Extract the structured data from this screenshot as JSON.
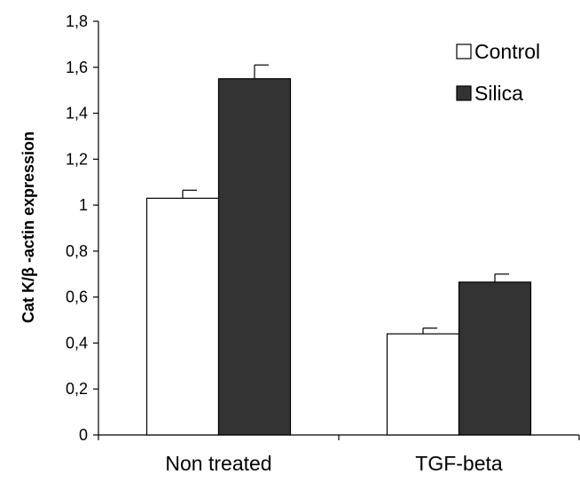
{
  "chart_data": {
    "type": "bar",
    "categories": [
      "Non treated",
      "TGF-beta"
    ],
    "series": [
      {
        "name": "Control",
        "values": [
          1.03,
          0.44
        ],
        "errors": [
          0.035,
          0.025
        ],
        "color": "#ffffff"
      },
      {
        "name": "Silica",
        "values": [
          1.55,
          0.665
        ],
        "errors": [
          0.06,
          0.035
        ],
        "color": "#333333"
      }
    ],
    "ylabel": "Cat K/β -actin expression",
    "xlabel": "",
    "ylim": [
      0,
      1.8
    ],
    "yticks": [
      "0",
      "0,2",
      "0,4",
      "0,6",
      "0,8",
      "1",
      "1,2",
      "1,4",
      "1,6",
      "1,8"
    ],
    "grid": false,
    "legend": "top-right"
  }
}
